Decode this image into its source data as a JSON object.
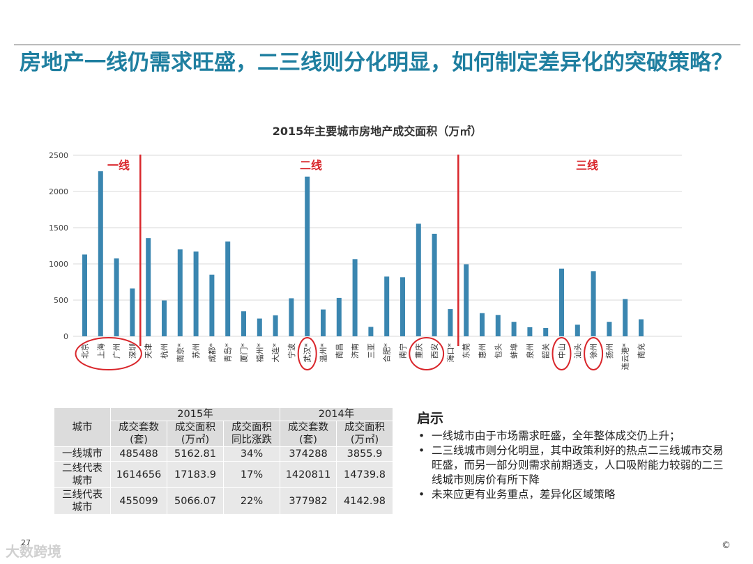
{
  "title": "房地产一线仍需求旺盛，二三线则分化明显，如何制定差异化的突破策略？",
  "chart_data": {
    "type": "bar",
    "title": "2015年主要城市房地产成交面积（万㎡）",
    "ylim": [
      0,
      2500
    ],
    "yticks": [
      0,
      500,
      1000,
      1500,
      2000,
      2500
    ],
    "color": "#3a86b0",
    "categories": [
      "北京",
      "上海",
      "广州",
      "深圳",
      "天津",
      "杭州",
      "南京*",
      "苏州",
      "成都*",
      "青岛*",
      "厦门*",
      "福州*",
      "大连*",
      "宁波",
      "武汉*",
      "温州*",
      "南昌",
      "济南",
      "三亚",
      "合肥*",
      "南宁",
      "重庆",
      "西安",
      "海口*",
      "东莞",
      "惠州",
      "包头",
      "蚌埠",
      "泉州",
      "韶关",
      "中山",
      "汕头",
      "徐州",
      "扬州",
      "连云港*",
      "南充"
    ],
    "values": [
      1130,
      2280,
      1075,
      660,
      1355,
      495,
      1200,
      1170,
      850,
      1310,
      345,
      245,
      290,
      525,
      2205,
      370,
      530,
      1065,
      130,
      825,
      815,
      1555,
      1415,
      375,
      995,
      320,
      295,
      200,
      125,
      115,
      935,
      160,
      900,
      200,
      515,
      235
    ],
    "group_labels": [
      "一线",
      "二线",
      "三线"
    ],
    "circled": [
      "北京",
      "上海",
      "广州",
      "深圳",
      "武汉*",
      "重庆",
      "西安",
      "中山",
      "徐州"
    ]
  },
  "table": {
    "city_header": "城市",
    "year_headers": [
      "2015年",
      "2014年"
    ],
    "col_headers": [
      [
        "成交套数",
        "(套)"
      ],
      [
        "成交面积",
        "(万㎡)"
      ],
      [
        "成交面积",
        "同比涨跌"
      ],
      [
        "成交套数",
        "(套)"
      ],
      [
        "成交面积",
        "(万㎡)"
      ]
    ],
    "rows": [
      {
        "city": [
          "一线城市"
        ],
        "values": [
          "485488",
          "5162.81",
          "34%",
          "374288",
          "3855.9"
        ]
      },
      {
        "city": [
          "二线代表",
          "城市"
        ],
        "values": [
          "1614656",
          "17183.9",
          "17%",
          "1420811",
          "14739.8"
        ]
      },
      {
        "city": [
          "三线代表",
          "城市"
        ],
        "values": [
          "455099",
          "5066.07",
          "22%",
          "377982",
          "4142.98"
        ]
      }
    ]
  },
  "insights": {
    "title": "启示",
    "items": [
      "一线城市由于市场需求旺盛，全年整体成交仍上升；",
      "二三线城市则分化明显，其中政策利好的热点二三线城市交易旺盛，而另一部分则需求前期透支，人口吸附能力较弱的二三线城市则房价有所下降",
      "未来应更有业务重点，差异化区域策略"
    ]
  },
  "footer": {
    "page_number": "27",
    "copyright": "©",
    "watermark": "大数跨境"
  },
  "colors": {
    "title": "#1f7fa0",
    "bar": "#3a86b0",
    "accent_red": "#d9262b"
  }
}
